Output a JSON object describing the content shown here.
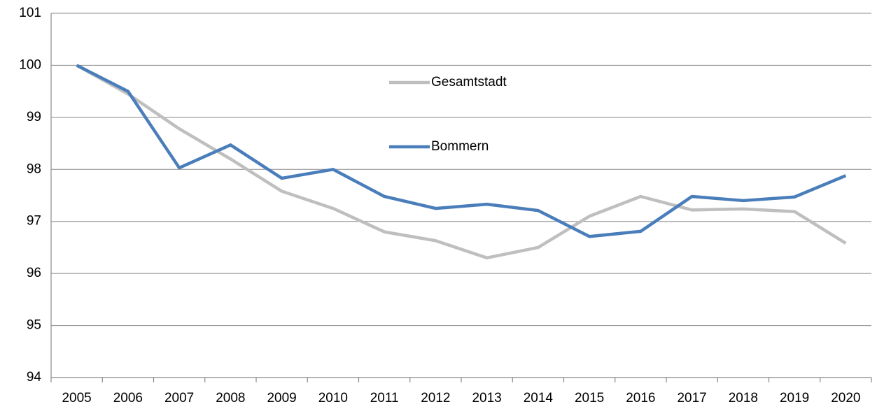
{
  "chart_data": {
    "type": "line",
    "categories": [
      "2005",
      "2006",
      "2007",
      "2008",
      "2009",
      "2010",
      "2011",
      "2012",
      "2013",
      "2014",
      "2015",
      "2016",
      "2017",
      "2018",
      "2019",
      "2020"
    ],
    "series": [
      {
        "name": "Gesamtstadt",
        "color": "#bfbfbf",
        "values": [
          100,
          99.45,
          98.78,
          98.2,
          97.58,
          97.25,
          96.8,
          96.63,
          96.3,
          96.5,
          97.1,
          97.48,
          97.22,
          97.24,
          97.19,
          96.58
        ]
      },
      {
        "name": "Bommern",
        "color": "#4a7ebb",
        "values": [
          100,
          99.5,
          98.03,
          98.47,
          97.83,
          98.0,
          97.48,
          97.25,
          97.33,
          97.21,
          96.71,
          96.81,
          97.48,
          97.4,
          97.47,
          97.88
        ]
      }
    ],
    "ylim": [
      94,
      101
    ],
    "yticks": [
      94,
      95,
      96,
      97,
      98,
      99,
      100,
      101
    ],
    "grid": true
  }
}
